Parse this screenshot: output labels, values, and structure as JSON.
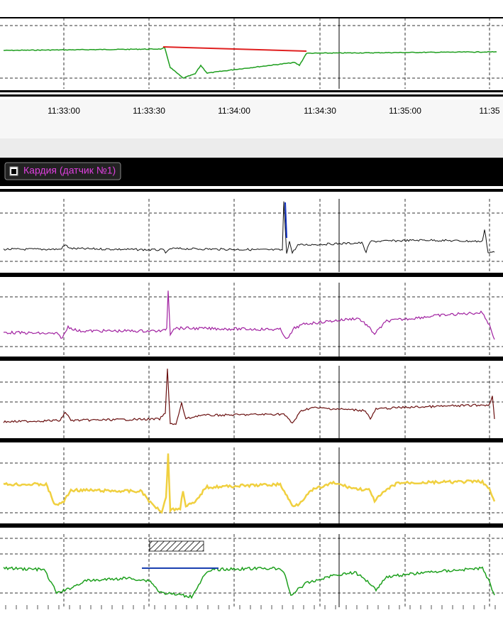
{
  "time_axis": {
    "labels": [
      "11:33:00",
      "11:33:30",
      "11:34:00",
      "11:34:30",
      "11:35:00",
      "11:35"
    ]
  },
  "panel": {
    "title": "Кардия (датчик №1)"
  }
}
